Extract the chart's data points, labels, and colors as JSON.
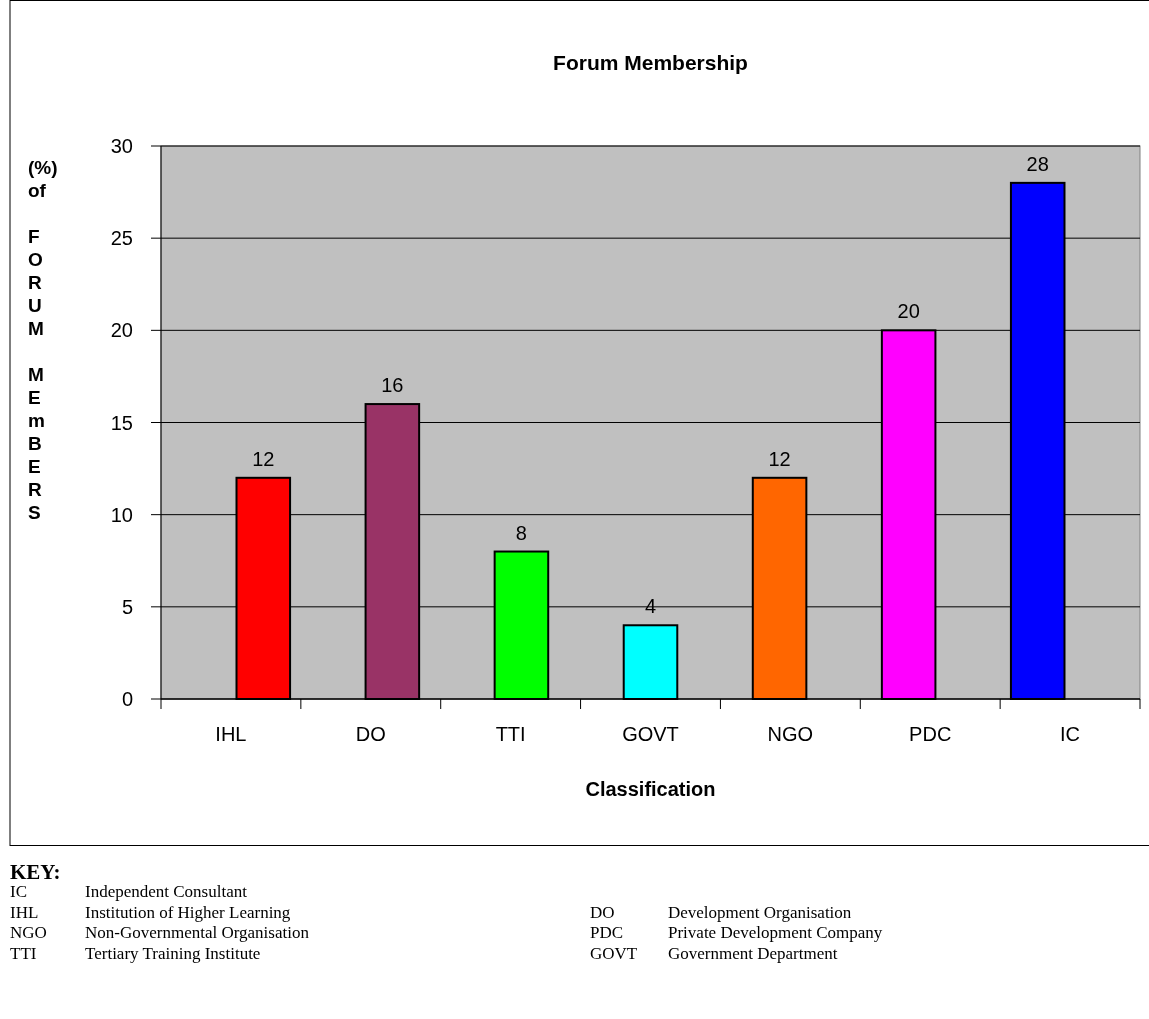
{
  "chart_data": {
    "type": "bar",
    "title": "Forum Membership",
    "xlabel": "Classification",
    "ylabel": "(%) of FORUM MEmBERS",
    "categories": [
      "IHL",
      "DO",
      "TTI",
      "GOVT",
      "NGO",
      "PDC",
      "IC"
    ],
    "values": [
      12,
      16,
      8,
      4,
      12,
      20,
      28
    ],
    "colors": [
      "#ff0000",
      "#993366",
      "#00ff00",
      "#00ffff",
      "#ff6600",
      "#ff00ff",
      "#0000ff"
    ],
    "ylim": [
      0,
      30
    ],
    "yticks": [
      0,
      5,
      10,
      15,
      20,
      25,
      30
    ],
    "grid": "y",
    "data_labels": true,
    "annotations": [
      "KEY:",
      "IC Independent Consultant",
      "IHL Institution of Higher Learning",
      "DO Development Organisation",
      "NGO Non-Governmental Organisation",
      "PDC Private Development Company",
      "TTI Tertiary Training Institute",
      "GOVT Government Department"
    ]
  }
}
